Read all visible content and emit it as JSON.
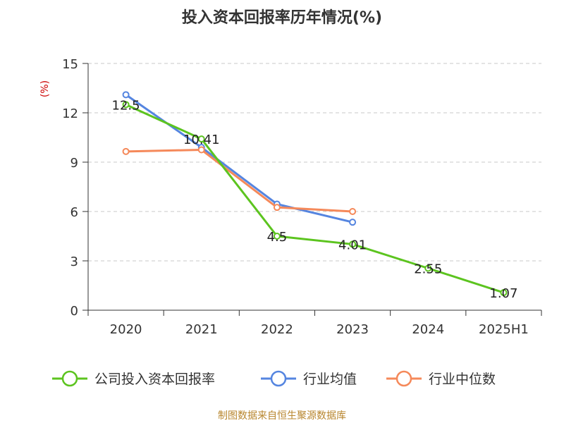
{
  "chart_data": {
    "type": "line",
    "title": "投入资本回报率历年情况(%)",
    "ylabel": "(%)",
    "categories": [
      "2020",
      "2021",
      "2022",
      "2023",
      "2024",
      "2025H1"
    ],
    "ylim": [
      0,
      15
    ],
    "yticks": [
      0,
      3,
      6,
      9,
      12,
      15
    ],
    "grid": true,
    "legend_position": "bottom",
    "series": [
      {
        "name": "公司投入资本回报率",
        "color": "#5cc41f",
        "values": [
          12.5,
          10.41,
          4.5,
          4.01,
          2.55,
          1.07
        ],
        "labels": [
          "12.5",
          "10.41",
          "4.5",
          "4.01",
          "2.55",
          "1.07"
        ]
      },
      {
        "name": "行业均值",
        "color": "#5585e0",
        "values": [
          13.1,
          9.9,
          6.45,
          5.35,
          null,
          null
        ]
      },
      {
        "name": "行业中位数",
        "color": "#f5895a",
        "values": [
          9.65,
          9.75,
          6.25,
          6.0,
          null,
          null
        ]
      }
    ]
  },
  "source": "制图数据来自恒生聚源数据库"
}
